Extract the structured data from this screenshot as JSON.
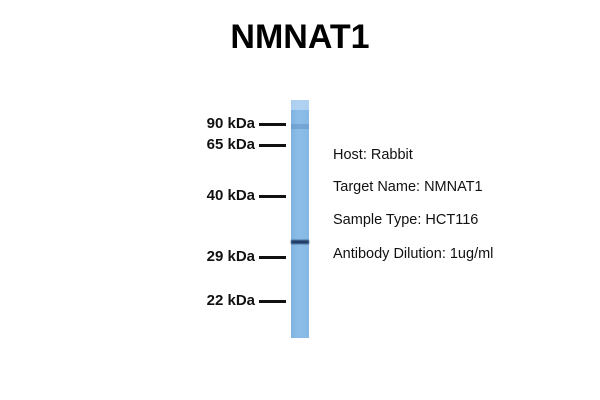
{
  "title": "NMNAT1",
  "markers": [
    {
      "label": "90 kDa",
      "kda": 90
    },
    {
      "label": "65 kDa",
      "kda": 65
    },
    {
      "label": "40 kDa",
      "kda": 40
    },
    {
      "label": "29 kDa",
      "kda": 29
    },
    {
      "label": "22 kDa",
      "kda": 22
    }
  ],
  "lane_color": "#86b8e4",
  "band_color": "#1f3b66",
  "info": [
    "Host: Rabbit",
    "Target Name: NMNAT1",
    "Sample Type: HCT116",
    "Antibody Dilution: 1ug/ml"
  ]
}
